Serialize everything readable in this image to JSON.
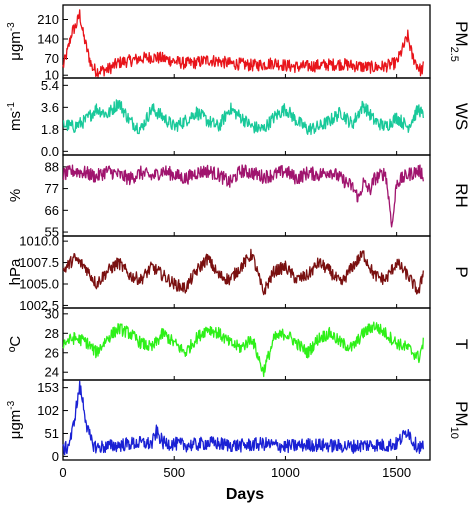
{
  "chart_data": {
    "type": "line",
    "x_axis": {
      "label": "Days",
      "range": [
        0,
        1650
      ],
      "ticks": [
        0,
        500,
        1000,
        1500
      ],
      "tick_labels": [
        "0",
        "500",
        "1000",
        "1500"
      ]
    },
    "panels": [
      {
        "id": "pm25",
        "unit": "μgm",
        "unit_sup": "-3",
        "name": "PM",
        "name_sub": "2.5",
        "color": "#e8141a",
        "ylim": [
          0,
          262
        ],
        "ticks": [
          10,
          70,
          140,
          210
        ],
        "tick_labels": [
          "10",
          "70",
          "140",
          "210"
        ],
        "series": {
          "x": [
            0,
            20,
            40,
            60,
            75,
            90,
            110,
            130,
            150,
            200,
            250,
            300,
            350,
            400,
            450,
            500,
            550,
            600,
            650,
            700,
            750,
            800,
            850,
            900,
            950,
            1000,
            1050,
            1100,
            1150,
            1200,
            1250,
            1300,
            1350,
            1400,
            1450,
            1500,
            1530,
            1550,
            1570,
            1590,
            1610,
            1620
          ],
          "y": [
            40,
            95,
            165,
            190,
            230,
            160,
            95,
            40,
            25,
            30,
            55,
            62,
            70,
            75,
            70,
            60,
            52,
            55,
            65,
            60,
            52,
            50,
            45,
            48,
            55,
            45,
            40,
            42,
            45,
            48,
            50,
            45,
            40,
            38,
            42,
            55,
            110,
            150,
            80,
            50,
            25,
            40
          ]
        }
      },
      {
        "id": "ws",
        "unit": "ms",
        "unit_sup": "-1",
        "name": "WS",
        "name_sub": "",
        "color": "#19c99a",
        "ylim": [
          -0.3,
          6.0
        ],
        "ticks": [
          0.0,
          1.8,
          3.6,
          5.4
        ],
        "tick_labels": [
          "0.0",
          "1.8",
          "3.6",
          "5.4"
        ],
        "series": {
          "x": [
            0,
            50,
            100,
            150,
            200,
            250,
            300,
            350,
            400,
            450,
            500,
            550,
            600,
            650,
            700,
            750,
            800,
            850,
            900,
            950,
            1000,
            1050,
            1100,
            1150,
            1200,
            1250,
            1300,
            1350,
            1400,
            1450,
            1500,
            1550,
            1600,
            1620
          ],
          "y": [
            2.2,
            2.0,
            2.5,
            3.5,
            3.0,
            4.0,
            2.5,
            1.8,
            3.5,
            2.8,
            2.0,
            2.5,
            3.2,
            2.5,
            2.0,
            3.5,
            2.8,
            2.0,
            1.8,
            2.8,
            3.5,
            2.5,
            1.8,
            2.0,
            2.5,
            3.2,
            2.2,
            3.8,
            2.5,
            2.0,
            2.8,
            2.0,
            3.5,
            2.8
          ]
        }
      },
      {
        "id": "rh",
        "unit": "%",
        "unit_sup": "",
        "name": "RH",
        "name_sub": "",
        "color": "#a0146e",
        "ylim": [
          53,
          94
        ],
        "ticks": [
          55,
          66,
          77,
          88
        ],
        "tick_labels": [
          "55",
          "66",
          "77",
          "88"
        ],
        "series": {
          "x": [
            0,
            50,
            100,
            150,
            200,
            250,
            300,
            350,
            400,
            450,
            500,
            550,
            600,
            650,
            700,
            750,
            800,
            850,
            900,
            950,
            1000,
            1050,
            1100,
            1150,
            1200,
            1250,
            1300,
            1330,
            1350,
            1380,
            1400,
            1450,
            1480,
            1500,
            1550,
            1600,
            1620
          ],
          "y": [
            84,
            86,
            85,
            83,
            86,
            84,
            82,
            85,
            83,
            86,
            84,
            82,
            85,
            86,
            84,
            80,
            86,
            85,
            83,
            84,
            86,
            82,
            85,
            84,
            86,
            82,
            78,
            72,
            80,
            76,
            82,
            85,
            58,
            80,
            84,
            86,
            84
          ]
        }
      },
      {
        "id": "p",
        "unit": "hPa",
        "unit_sup": "",
        "name": "P",
        "name_sub": "",
        "color": "#7a1010",
        "ylim": [
          1002.2,
          1010.6
        ],
        "ticks": [
          1002.5,
          1005.0,
          1007.5,
          1010.0
        ],
        "tick_labels": [
          "1002.5",
          "1005.0",
          "1007.5",
          "1010.0"
        ],
        "series": {
          "x": [
            0,
            50,
            100,
            150,
            200,
            250,
            300,
            350,
            400,
            450,
            500,
            550,
            600,
            650,
            700,
            750,
            800,
            850,
            900,
            950,
            1000,
            1050,
            1100,
            1150,
            1200,
            1250,
            1300,
            1350,
            1400,
            1450,
            1500,
            1550,
            1600,
            1620
          ],
          "y": [
            1006.5,
            1008.0,
            1007.0,
            1005.0,
            1006.5,
            1007.5,
            1006.0,
            1005.5,
            1007.0,
            1006.0,
            1005.0,
            1004.5,
            1006.5,
            1008.0,
            1006.0,
            1005.5,
            1007.0,
            1008.5,
            1004.0,
            1006.5,
            1007.0,
            1005.5,
            1006.0,
            1007.5,
            1006.5,
            1005.0,
            1007.0,
            1008.5,
            1006.0,
            1005.5,
            1007.5,
            1006.0,
            1004.0,
            1006.5
          ]
        }
      },
      {
        "id": "t",
        "unit": "ºC",
        "unit_sup": "",
        "name": "T",
        "name_sub": "",
        "color": "#2ef018",
        "ylim": [
          23.2,
          30.6
        ],
        "ticks": [
          24,
          26,
          28,
          30
        ],
        "tick_labels": [
          "24",
          "26",
          "28",
          "30"
        ],
        "series": {
          "x": [
            0,
            50,
            100,
            150,
            200,
            250,
            300,
            350,
            400,
            450,
            500,
            550,
            600,
            650,
            700,
            750,
            800,
            850,
            900,
            950,
            1000,
            1050,
            1100,
            1150,
            1200,
            1250,
            1300,
            1350,
            1400,
            1450,
            1500,
            1550,
            1600,
            1620
          ],
          "y": [
            27.0,
            27.5,
            27.2,
            26.0,
            27.5,
            28.5,
            28.0,
            27.0,
            26.5,
            28.0,
            27.0,
            26.0,
            27.5,
            28.5,
            28.0,
            27.0,
            26.5,
            27.5,
            24.0,
            27.5,
            28.0,
            27.0,
            26.0,
            27.5,
            28.0,
            27.0,
            26.5,
            28.0,
            28.8,
            28.0,
            27.0,
            26.5,
            25.5,
            27.0
          ]
        }
      },
      {
        "id": "pm10",
        "unit": "μgm",
        "unit_sup": "-3",
        "name": "PM",
        "name_sub": "10",
        "color": "#1a21d4",
        "ylim": [
          -8,
          170
        ],
        "ticks": [
          0,
          51,
          102,
          153
        ],
        "tick_labels": [
          "0",
          "51",
          "102",
          "153"
        ],
        "series": {
          "x": [
            0,
            20,
            40,
            60,
            75,
            90,
            110,
            130,
            150,
            200,
            250,
            300,
            350,
            400,
            420,
            450,
            500,
            550,
            600,
            650,
            700,
            750,
            800,
            850,
            900,
            950,
            1000,
            1050,
            1100,
            1150,
            1200,
            1250,
            1300,
            1350,
            1400,
            1450,
            1500,
            1530,
            1550,
            1570,
            1590,
            1610,
            1620
          ],
          "y": [
            15,
            20,
            50,
            110,
            155,
            120,
            60,
            30,
            20,
            22,
            25,
            28,
            30,
            28,
            55,
            30,
            28,
            25,
            26,
            30,
            28,
            25,
            24,
            26,
            28,
            25,
            22,
            24,
            26,
            25,
            24,
            23,
            22,
            25,
            26,
            24,
            28,
            45,
            60,
            35,
            25,
            20,
            22
          ]
        }
      }
    ]
  }
}
